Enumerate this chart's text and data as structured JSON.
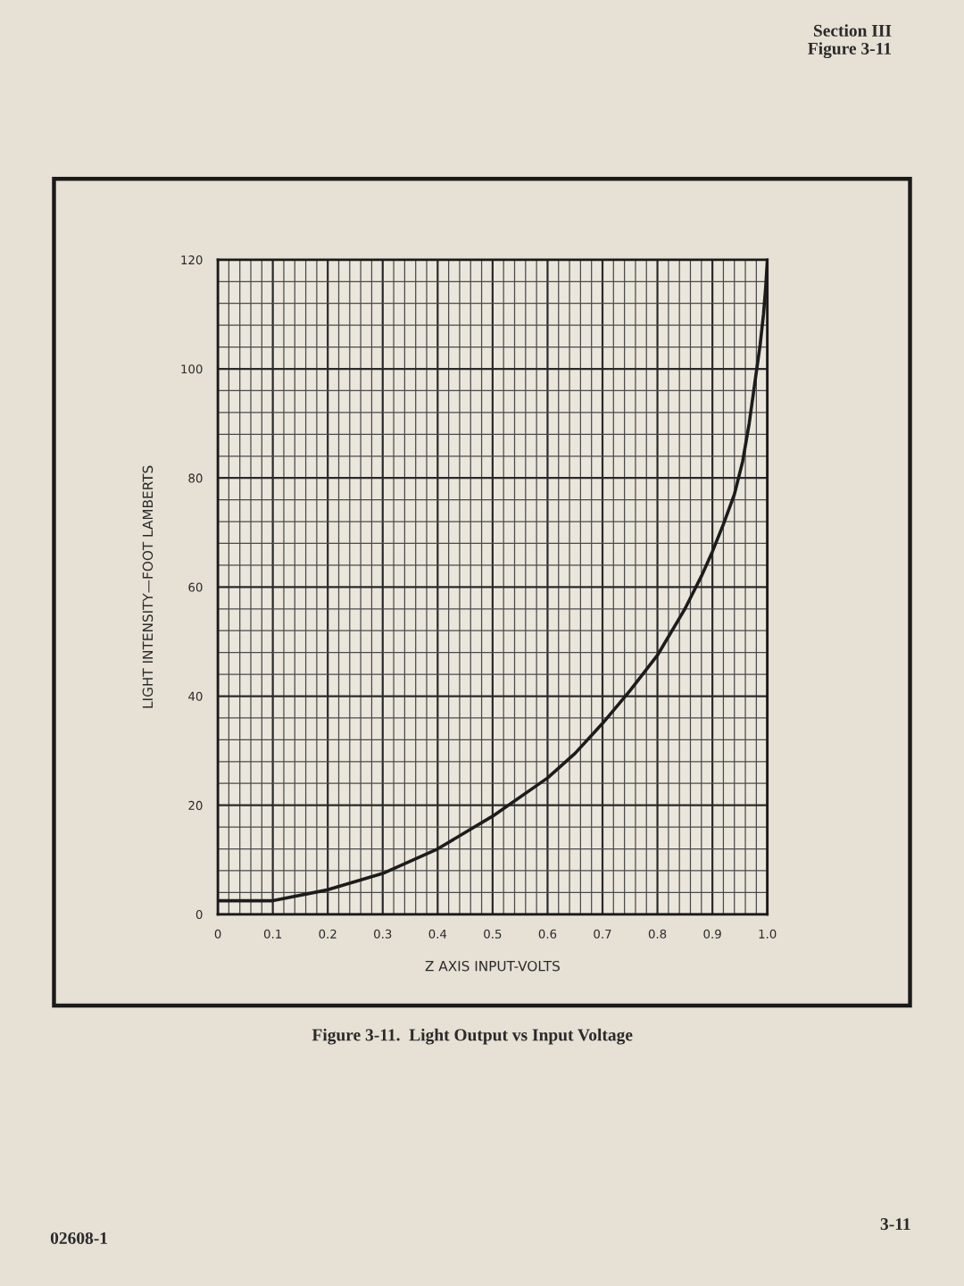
{
  "chart_data": {
    "type": "line",
    "title": "Figure 3-11.  Light Output vs Input Voltage",
    "xlabel": "Z AXIS INPUT-VOLTS",
    "ylabel": "LIGHT INTENSITY—FOOT LAMBERTS",
    "x": [
      0,
      0.1,
      0.2,
      0.3,
      0.4,
      0.5,
      0.6,
      0.65,
      0.7,
      0.75,
      0.8,
      0.85,
      0.88,
      0.9,
      0.92,
      0.94,
      0.955,
      0.967,
      0.978,
      0.987,
      0.993,
      0.997,
      1
    ],
    "series": [
      {
        "color": "#1c1c1c",
        "values": [
          2.5,
          2.5,
          4.5,
          7.5,
          12,
          18,
          25,
          29.5,
          35,
          41,
          47.5,
          56,
          62,
          66.5,
          71.5,
          77,
          83,
          90,
          98,
          104.5,
          110,
          115,
          120
        ]
      }
    ],
    "xlim": [
      0,
      1
    ],
    "ylim": [
      0,
      120
    ],
    "xticks": [
      0,
      0.1,
      0.2,
      0.3,
      0.4,
      0.5,
      0.6,
      0.7,
      0.8,
      0.9,
      {
        "value": 1,
        "label": "1.0"
      }
    ],
    "yticks": [
      0,
      20,
      40,
      60,
      80,
      100,
      120
    ],
    "grid": true,
    "line_style": "solid",
    "annotations": [
      "Section III",
      "Figure 3-11",
      "02608-1",
      "3-11"
    ]
  }
}
